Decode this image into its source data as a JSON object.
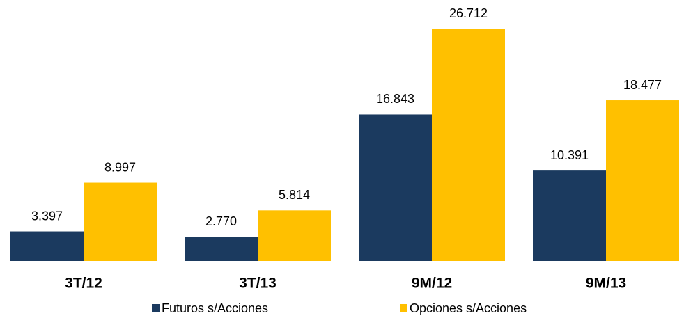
{
  "chart_data": {
    "type": "bar",
    "categories": [
      "3T/12",
      "3T/13",
      "9M/12",
      "9M/13"
    ],
    "series": [
      {
        "name": "Futuros s/Acciones",
        "color": "#1b3a5f",
        "values": [
          3397,
          2770,
          16843,
          10391
        ],
        "value_labels": [
          "3.397",
          "2.770",
          "16.843",
          "10.391"
        ]
      },
      {
        "name": "Opciones s/Acciones",
        "color": "#ffc000",
        "values": [
          8997,
          5814,
          26712,
          18477
        ],
        "value_labels": [
          "8.997",
          "5.814",
          "26.712",
          "18.477"
        ]
      }
    ],
    "ylim": [
      0,
      30000
    ]
  }
}
